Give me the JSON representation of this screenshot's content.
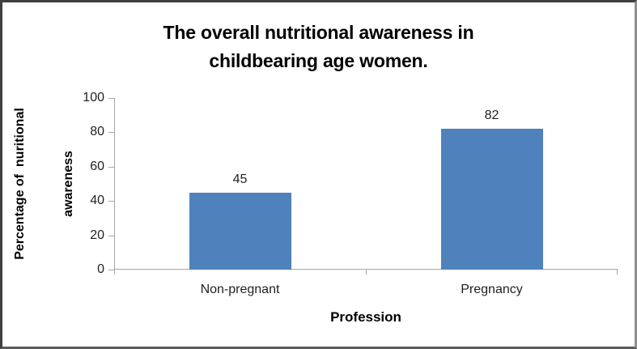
{
  "chart_data": {
    "type": "bar",
    "title": "The overall nutritional awareness in childbearing age women.",
    "title_lines": [
      "The overall nutritional awareness in",
      "childbearing age women."
    ],
    "categories": [
      "Non-pregnant",
      "Pregnancy"
    ],
    "values": [
      45,
      82
    ],
    "data_labels": [
      "45",
      "82"
    ],
    "xlabel": "Profession",
    "ylabel": "Percentage of  nuritional awareness",
    "ylabel_lines": [
      "Percentage of  nuritional",
      "awareness"
    ],
    "ylim": [
      0,
      100
    ],
    "yticks": [
      100,
      80,
      60,
      40,
      20,
      0
    ],
    "grid": false,
    "legend": false,
    "bar_color": "#4F81BD",
    "axis_color": "#A6A6A6",
    "text_color": "#1F1F1F",
    "title_color": "#000000",
    "background_color": "#FFFFFF"
  }
}
